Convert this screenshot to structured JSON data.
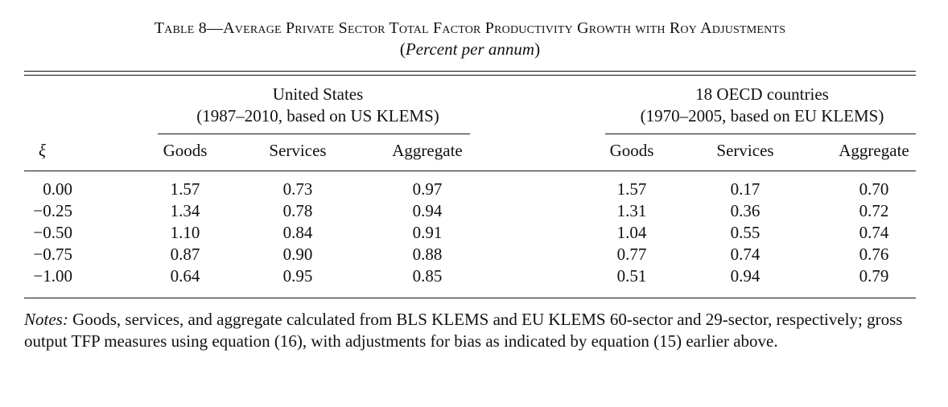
{
  "table": {
    "title": "Table 8—Average Private Sector Total Factor Productivity Growth with Roy Adjustments",
    "subtitle_open": "(",
    "subtitle_italic": "Percent per annum",
    "subtitle_close": ")",
    "groups": [
      {
        "line1": "United States",
        "line2": "(1987–2010, based on US KLEMS)"
      },
      {
        "line1": "18 OECD countries",
        "line2": "(1970–2005, based on EU KLEMS)"
      }
    ],
    "row_header": "ξ",
    "columns": [
      "Goods",
      "Services",
      "Aggregate",
      "Goods",
      "Services",
      "Aggregate"
    ],
    "rows": [
      {
        "xi": "0.00",
        "cells": [
          "1.57",
          "0.73",
          "0.97",
          "1.57",
          "0.17",
          "0.70"
        ]
      },
      {
        "xi": "−0.25",
        "cells": [
          "1.34",
          "0.78",
          "0.94",
          "1.31",
          "0.36",
          "0.72"
        ]
      },
      {
        "xi": "−0.50",
        "cells": [
          "1.10",
          "0.84",
          "0.91",
          "1.04",
          "0.55",
          "0.74"
        ]
      },
      {
        "xi": "−0.75",
        "cells": [
          "0.87",
          "0.90",
          "0.88",
          "0.77",
          "0.74",
          "0.76"
        ]
      },
      {
        "xi": "−1.00",
        "cells": [
          "0.64",
          "0.95",
          "0.85",
          "0.51",
          "0.94",
          "0.79"
        ]
      }
    ],
    "notes_label": "Notes:",
    "notes_text": " Goods, services, and aggregate calculated from BLS KLEMS and EU KLEMS 60-sector and 29-sector, respectively; gross output TFP measures using equation (16), with adjustments for bias as indicated by equation (15) earlier above."
  }
}
